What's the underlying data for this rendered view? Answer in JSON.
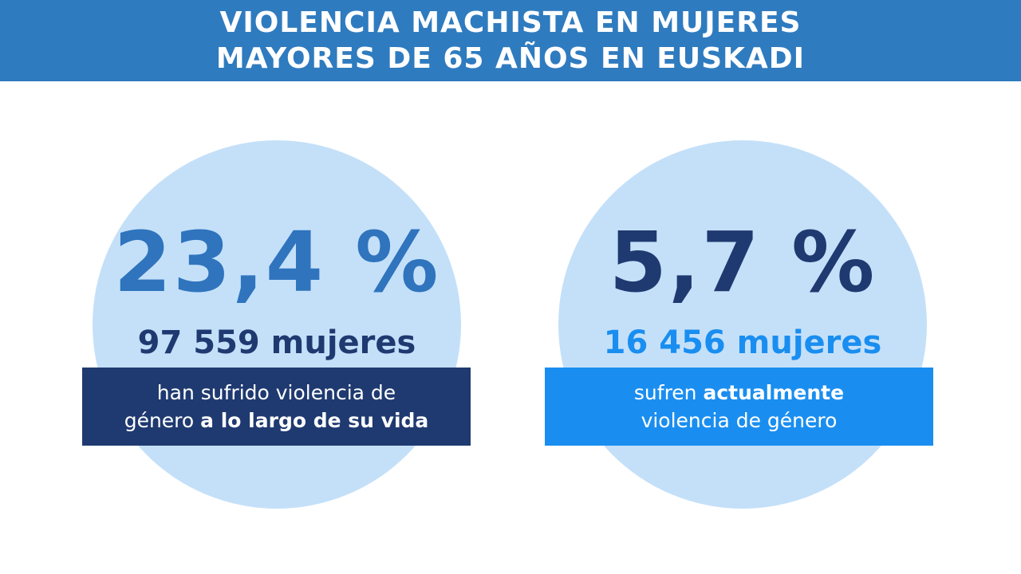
{
  "header": {
    "line1": "VIOLENCIA MACHISTA EN MUJERES",
    "line2": "MAYORES DE 65 AÑOS EN EUSKADI"
  },
  "left": {
    "percent": "23,4 %",
    "count": "97 559 mujeres",
    "text_line1": "han sufrido violencia de",
    "text_line2_normal": "género ",
    "text_line2_bold": "a lo largo de su vida"
  },
  "right": {
    "percent": "5,7 %",
    "count": "16 456 mujeres",
    "text_line1_normal": "sufren ",
    "text_line1_bold": "actualmente",
    "text_line2": "violencia de género"
  },
  "colors": {
    "header_bg": "#2f7bbf",
    "circle": "#c4e0f9",
    "dark_navy": "#1f3a70",
    "mid_blue": "#2f74bd",
    "bright_blue": "#1a8ef0"
  }
}
